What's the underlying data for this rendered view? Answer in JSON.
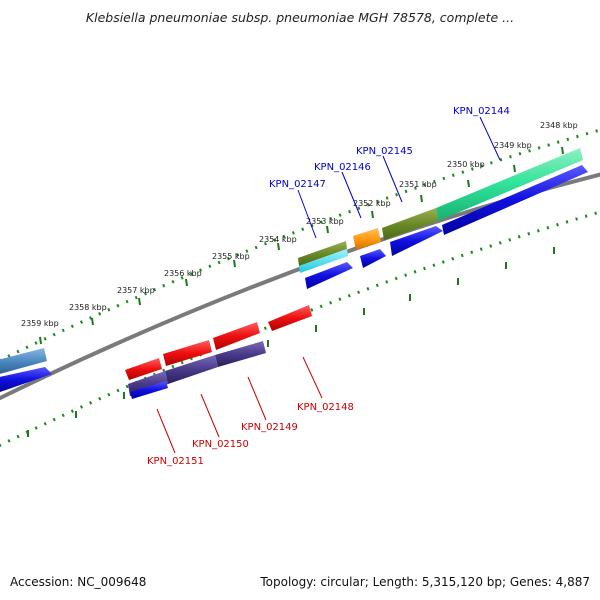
{
  "header": {
    "title": "Klebsiella pneumoniae subsp. pneumoniae MGH 78578, complete ..."
  },
  "footer": {
    "accession": "Accession: NC_009648",
    "summary": "Topology: circular; Length: 5,315,120 bp; Genes: 4,887"
  },
  "ruler": {
    "labels": [
      "2348 kbp",
      "2349 kbp",
      "2350 kbp",
      "2351 kbp",
      "2352 kbp",
      "2353 kbp",
      "2354 kbp",
      "2355 kbp",
      "2356 kbp",
      "2357 kbp",
      "2358 kbp",
      "2359 kbp"
    ]
  },
  "genes": {
    "forward": [
      "KPN_02144",
      "KPN_02145",
      "KPN_02146",
      "KPN_02147"
    ],
    "reverse": [
      "KPN_02148",
      "KPN_02149",
      "KPN_02150",
      "KPN_02151"
    ]
  },
  "colors": {
    "forward_label": "#0000cc",
    "reverse_label": "#cc0000",
    "cds_blue": "#1414e6",
    "cds_red": "#ee1111",
    "tick_green": "#1a7a1a",
    "backbone": "#7a7a7a"
  }
}
